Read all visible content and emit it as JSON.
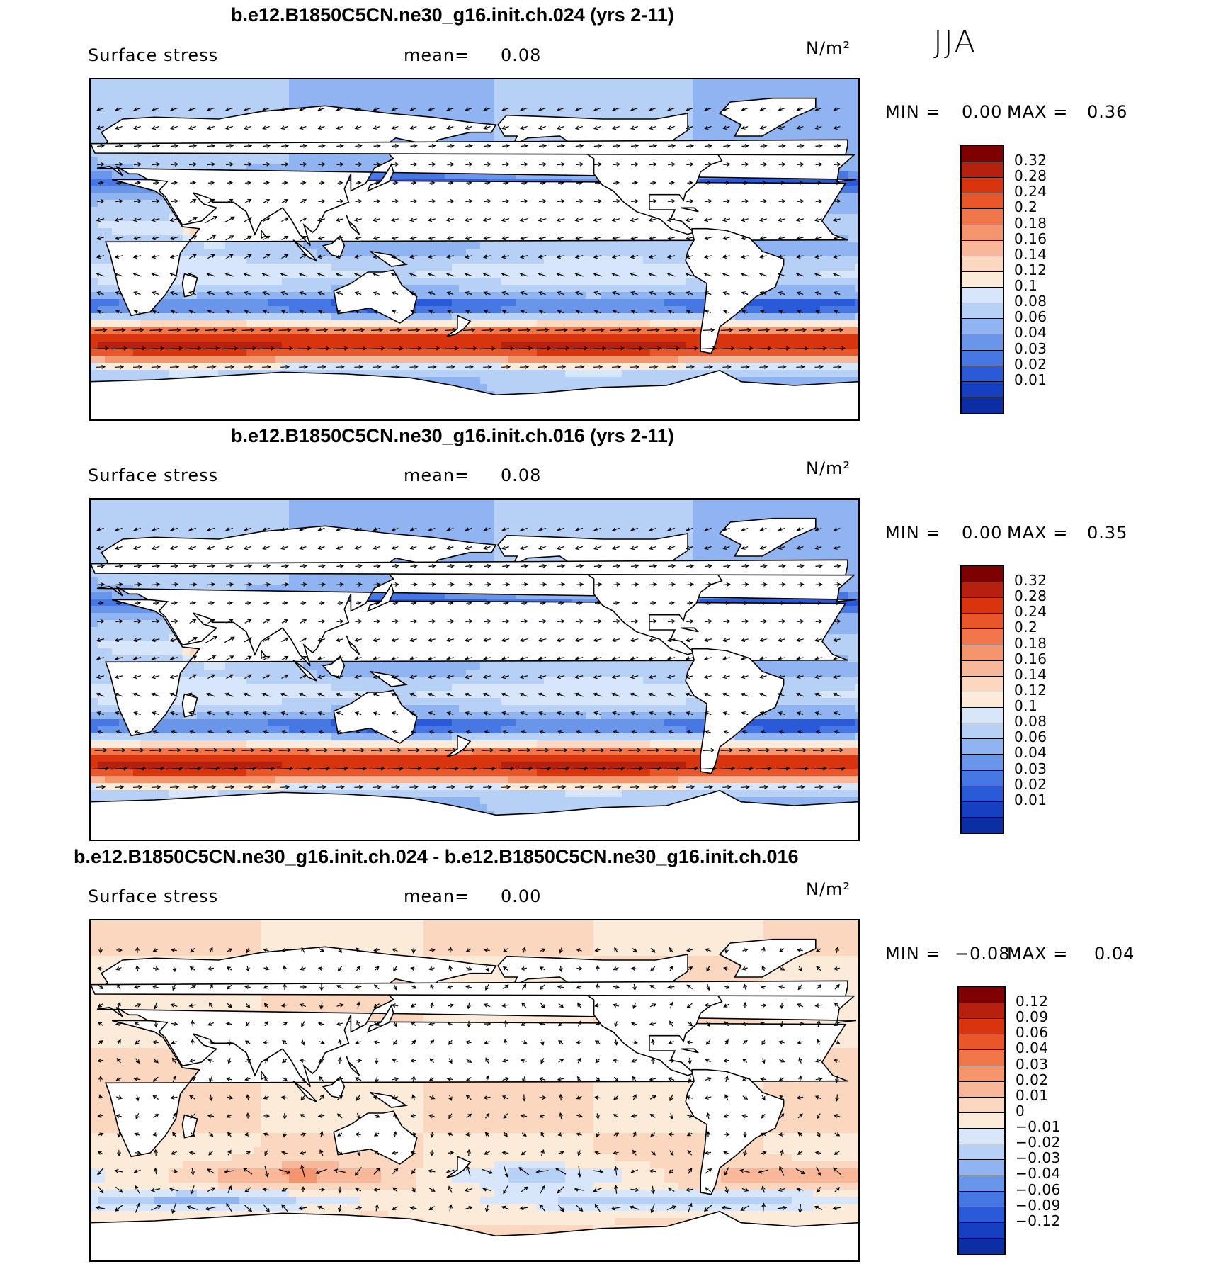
{
  "season_label": "JJA",
  "panels": [
    {
      "title": "b.e12.B1850C5CN.ne30_g16.init.ch.024 (yrs 2-11)",
      "variable": "Surface stress",
      "mean_label": "mean=",
      "mean_value": "0.08",
      "units": "N/m²",
      "min_label": "MIN =",
      "min_value": "0.00",
      "max_label": "MAX =",
      "max_value": "0.36",
      "legend_ticks": [
        "0.32",
        "0.28",
        "0.24",
        "0.2",
        "0.18",
        "0.16",
        "0.14",
        "0.12",
        "0.1",
        "0.08",
        "0.06",
        "0.04",
        "0.03",
        "0.02",
        "0.01"
      ],
      "legend_colors": [
        "#7f0000",
        "#b5200f",
        "#d8350e",
        "#e9562a",
        "#f1764a",
        "#f4956e",
        "#f8b799",
        "#fbd7bf",
        "#fdebd9",
        "#d7e6fa",
        "#b7d0f6",
        "#8fb4f1",
        "#6a96ea",
        "#4677e2",
        "#2a5ad8",
        "#1640c2",
        "#0b2fa3"
      ],
      "field": "mean"
    },
    {
      "title": "b.e12.B1850C5CN.ne30_g16.init.ch.016 (yrs 2-11)",
      "variable": "Surface stress",
      "mean_label": "mean=",
      "mean_value": "0.08",
      "units": "N/m²",
      "min_label": "MIN =",
      "min_value": "0.00",
      "max_label": "MAX =",
      "max_value": "0.35",
      "legend_ticks": [
        "0.32",
        "0.28",
        "0.24",
        "0.2",
        "0.18",
        "0.16",
        "0.14",
        "0.12",
        "0.1",
        "0.08",
        "0.06",
        "0.04",
        "0.03",
        "0.02",
        "0.01"
      ],
      "legend_colors": [
        "#7f0000",
        "#b5200f",
        "#d8350e",
        "#e9562a",
        "#f1764a",
        "#f4956e",
        "#f8b799",
        "#fbd7bf",
        "#fdebd9",
        "#d7e6fa",
        "#b7d0f6",
        "#8fb4f1",
        "#6a96ea",
        "#4677e2",
        "#2a5ad8",
        "#1640c2",
        "#0b2fa3"
      ],
      "field": "mean"
    },
    {
      "title": "b.e12.B1850C5CN.ne30_g16.init.ch.024 - b.e12.B1850C5CN.ne30_g16.init.ch.016",
      "variable": "Surface stress",
      "mean_label": "mean=",
      "mean_value": "0.00",
      "units": "N/m²",
      "min_label": "MIN =",
      "min_value": "−0.08",
      "max_label": "MAX =",
      "max_value": "0.04",
      "legend_ticks": [
        "0.12",
        "0.09",
        "0.06",
        "0.04",
        "0.03",
        "0.02",
        "0.01",
        "0",
        "−0.01",
        "−0.02",
        "−0.03",
        "−0.04",
        "−0.06",
        "−0.09",
        "−0.12"
      ],
      "legend_colors": [
        "#7f0000",
        "#b5200f",
        "#d8350e",
        "#e9562a",
        "#f1764a",
        "#f4956e",
        "#f8b799",
        "#fbd7bf",
        "#fdebd9",
        "#d7e6fa",
        "#b7d0f6",
        "#8fb4f1",
        "#6a96ea",
        "#4677e2",
        "#2a5ad8",
        "#1640c2",
        "#0b2fa3"
      ],
      "field": "diff"
    }
  ]
}
